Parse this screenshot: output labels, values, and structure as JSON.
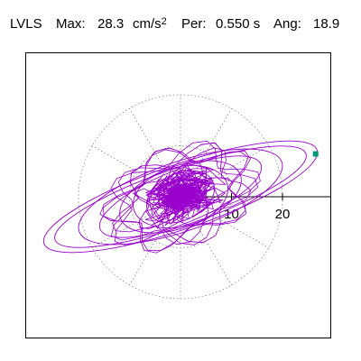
{
  "header": {
    "station": "LVLS",
    "max_label": "Max:",
    "max_value": "28.3",
    "max_unit": "cm/s",
    "max_exp": "2",
    "per_label": "Per:",
    "per_value": "0.550 s",
    "ang_label": "Ang:",
    "ang_value": "18.9"
  },
  "chart_data": {
    "type": "scatter",
    "title": "",
    "xlabel": "",
    "ylabel": "",
    "x_ticks": [
      "10",
      "20"
    ],
    "polar_grid_rings": [
      10,
      20
    ],
    "grid": "dotted polar rings and spokes every 30 degrees",
    "trace_color": "#9900cc",
    "end_marker_color": "#009977",
    "orbit_ellipses": [
      {
        "semi_major": 28.3,
        "semi_minor": 6.3,
        "angle_deg": 18.9
      },
      {
        "semi_major": 26.0,
        "semi_minor": 5.6,
        "angle_deg": 18.9
      },
      {
        "semi_major": 21.0,
        "semi_minor": 6.8,
        "angle_deg": 18.9
      },
      {
        "semi_major": 17.0,
        "semi_minor": 5.2,
        "angle_deg": 22.0
      },
      {
        "semi_major": 12.5,
        "semi_minor": 6.0,
        "angle_deg": 20.0
      },
      {
        "semi_major": 9.5,
        "semi_minor": 5.8,
        "angle_deg": 15.0
      },
      {
        "semi_major": 7.0,
        "semi_minor": 4.6,
        "angle_deg": 25.0
      }
    ],
    "end_point": {
      "x": 26.5,
      "y": 8.4
    }
  }
}
